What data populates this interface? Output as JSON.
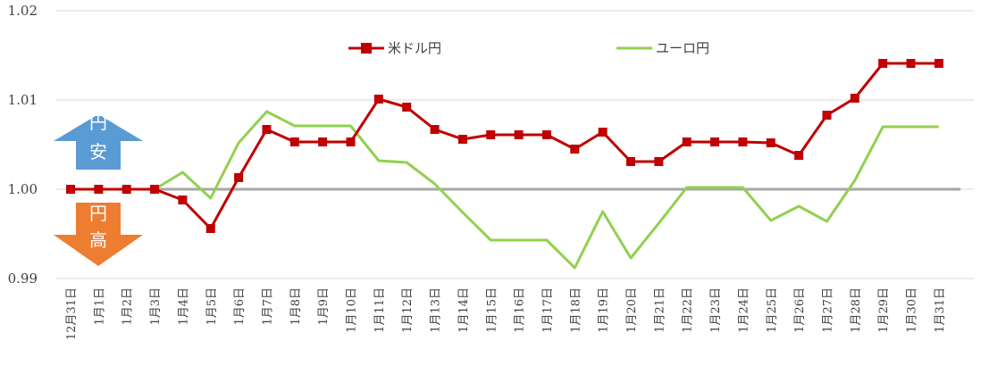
{
  "chart_data": {
    "type": "line",
    "title": "",
    "xlabel": "",
    "ylabel": "",
    "ylim": [
      0.99,
      1.02
    ],
    "yticks": [
      0.99,
      1.0,
      1.01,
      1.02
    ],
    "ytick_labels": [
      "0.99",
      "1.00",
      "1.01",
      "1.02"
    ],
    "grid": true,
    "legend_position": "top",
    "categories": [
      "12月31日",
      "1月1日",
      "1月2日",
      "1月3日",
      "1月4日",
      "1月5日",
      "1月6日",
      "1月7日",
      "1月8日",
      "1月9日",
      "1月10日",
      "1月11日",
      "1月12日",
      "1月13日",
      "1月14日",
      "1月15日",
      "1月16日",
      "1月17日",
      "1月18日",
      "1月19日",
      "1月20日",
      "1月21日",
      "1月22日",
      "1月23日",
      "1月24日",
      "1月25日",
      "1月26日",
      "1月27日",
      "1月28日",
      "1月29日",
      "1月30日",
      "1月31日"
    ],
    "reference_line": {
      "value": 1.0,
      "color": "#a6a6a6"
    },
    "series": [
      {
        "name": "米ドル円",
        "color": "#c00000",
        "marker": "square",
        "values": [
          1.0,
          1.0,
          1.0,
          1.0,
          0.9988,
          0.9956,
          1.0013,
          1.0067,
          1.0053,
          1.0053,
          1.0053,
          1.0101,
          1.0092,
          1.0067,
          1.0056,
          1.0061,
          1.0061,
          1.0061,
          1.0045,
          1.0064,
          1.0031,
          1.0031,
          1.0053,
          1.0053,
          1.0053,
          1.0052,
          1.0038,
          1.0083,
          1.0102,
          1.0141,
          1.0141,
          1.0141
        ]
      },
      {
        "name": "ユーロ円",
        "color": "#92d050",
        "marker": "none",
        "values": [
          1.0,
          1.0,
          1.0,
          1.0,
          1.0019,
          0.999,
          1.0052,
          1.0087,
          1.0071,
          1.0071,
          1.0071,
          1.0032,
          1.003,
          1.0006,
          0.9974,
          0.9943,
          0.9943,
          0.9943,
          0.9912,
          0.9975,
          0.9923,
          0.9962,
          1.0002,
          1.0002,
          1.0002,
          0.9965,
          0.9981,
          0.9964,
          1.001,
          1.007,
          1.007,
          1.007
        ]
      }
    ],
    "annotations": [
      {
        "type": "arrow-up",
        "text": [
          "円",
          "安"
        ],
        "color": "#5b9bd5"
      },
      {
        "type": "arrow-down",
        "text": [
          "円",
          "高"
        ],
        "color": "#ed7d31"
      }
    ]
  }
}
